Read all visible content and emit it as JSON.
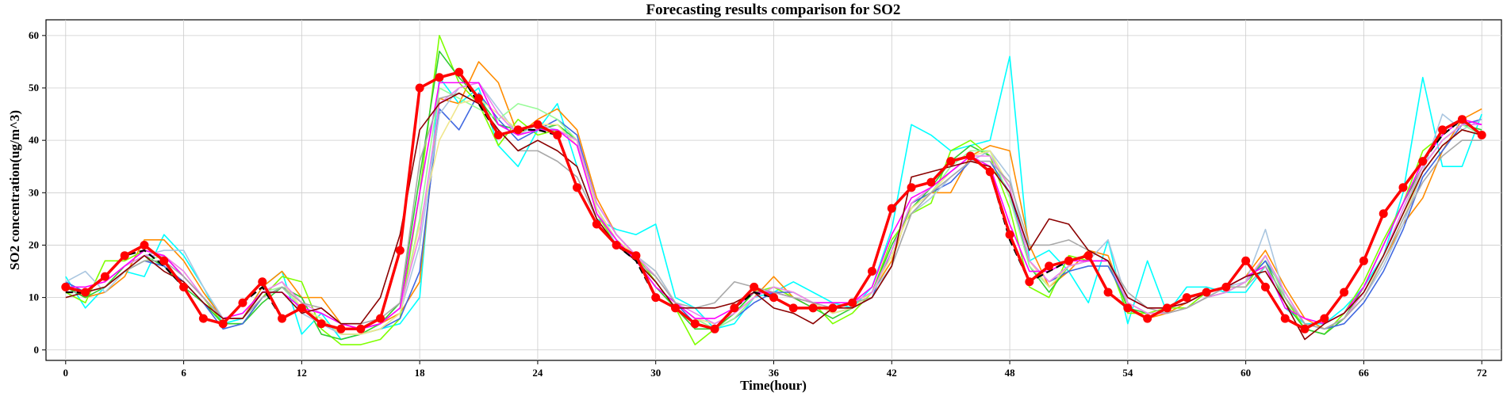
{
  "chart_data": {
    "type": "line",
    "title": "Forecasting results comparison for SO2",
    "xlabel": "Time(hour)",
    "ylabel": "SO2 concentration(ug/m^3)",
    "xlim": [
      -1,
      73
    ],
    "ylim": [
      -2,
      63
    ],
    "xticks": [
      0,
      6,
      12,
      18,
      24,
      30,
      36,
      42,
      48,
      54,
      60,
      66,
      72
    ],
    "yticks": [
      0,
      10,
      20,
      30,
      40,
      50,
      60
    ],
    "grid": true,
    "legend": "none",
    "x": [
      0,
      1,
      2,
      3,
      4,
      5,
      6,
      7,
      8,
      9,
      10,
      11,
      12,
      13,
      14,
      15,
      16,
      17,
      18,
      19,
      20,
      21,
      22,
      23,
      24,
      25,
      26,
      27,
      28,
      29,
      30,
      31,
      32,
      33,
      34,
      35,
      36,
      37,
      38,
      39,
      40,
      41,
      42,
      43,
      44,
      45,
      46,
      47,
      48,
      49,
      50,
      51,
      52,
      53,
      54,
      55,
      56,
      57,
      58,
      59,
      60,
      61,
      62,
      63,
      64,
      65,
      66,
      67,
      68,
      69,
      70,
      71,
      72
    ],
    "series": [
      {
        "color": "#00ffff",
        "style": "solid",
        "values": [
          14,
          8,
          12,
          15,
          14,
          22,
          18,
          12,
          5,
          6,
          12,
          15,
          3,
          7,
          2,
          3,
          4,
          5,
          10,
          52,
          47,
          50,
          39,
          35,
          42,
          47,
          35,
          25,
          23,
          22,
          24,
          10,
          8,
          4,
          5,
          10,
          11,
          13,
          11,
          9,
          8,
          12,
          23,
          43,
          41,
          38,
          39,
          40,
          56,
          17,
          19,
          15,
          9,
          21,
          5,
          17,
          7,
          12,
          12,
          11,
          11,
          16,
          8,
          5,
          5,
          8,
          12,
          18,
          30,
          52,
          35,
          35,
          45
        ]
      },
      {
        "color": "#ff8c00",
        "style": "solid",
        "values": [
          12,
          10,
          11,
          14,
          21,
          21,
          17,
          11,
          6,
          6,
          12,
          15,
          10,
          10,
          5,
          4,
          5,
          7,
          13,
          48,
          47,
          55,
          51,
          41,
          44,
          46,
          42,
          29,
          22,
          18,
          15,
          9,
          6,
          4,
          6,
          10,
          14,
          10,
          8,
          8,
          9,
          11,
          17,
          28,
          30,
          30,
          37,
          39,
          38,
          20,
          12,
          15,
          19,
          18,
          8,
          6,
          7,
          9,
          11,
          12,
          14,
          19,
          12,
          6,
          4,
          6,
          10,
          17,
          24,
          29,
          38,
          44,
          46
        ]
      },
      {
        "color": "#7fff00",
        "style": "solid",
        "values": [
          11,
          9,
          17,
          17,
          19,
          18,
          14,
          10,
          5,
          5,
          10,
          14,
          13,
          4,
          1,
          1,
          2,
          6,
          30,
          60,
          51,
          47,
          39,
          44,
          41,
          42,
          40,
          26,
          20,
          18,
          13,
          8,
          1,
          4,
          7,
          11,
          12,
          10,
          9,
          5,
          7,
          11,
          21,
          26,
          28,
          38,
          40,
          37,
          27,
          12,
          10,
          18,
          17,
          17,
          7,
          7,
          8,
          8,
          11,
          12,
          12,
          18,
          10,
          4,
          3,
          7,
          13,
          21,
          28,
          38,
          41,
          44,
          41
        ]
      },
      {
        "color": "#32cd32",
        "style": "solid",
        "values": [
          12,
          10,
          12,
          16,
          18,
          16,
          12,
          9,
          5,
          5,
          9,
          12,
          10,
          3,
          2,
          3,
          5,
          9,
          33,
          57,
          52,
          48,
          43,
          42,
          42,
          43,
          40,
          27,
          21,
          17,
          12,
          8,
          4,
          4,
          7,
          11,
          11,
          10,
          8,
          6,
          8,
          11,
          20,
          27,
          31,
          36,
          39,
          37,
          31,
          16,
          11,
          16,
          17,
          17,
          8,
          7,
          7,
          8,
          10,
          11,
          13,
          17,
          9,
          4,
          3,
          6,
          12,
          20,
          28,
          35,
          40,
          43,
          42
        ]
      },
      {
        "color": "#4169e1",
        "style": "solid",
        "values": [
          13,
          11,
          12,
          15,
          17,
          16,
          13,
          9,
          4,
          5,
          10,
          12,
          8,
          5,
          3,
          3,
          4,
          6,
          15,
          46,
          42,
          49,
          44,
          40,
          42,
          44,
          41,
          28,
          22,
          18,
          14,
          9,
          5,
          4,
          6,
          9,
          11,
          11,
          9,
          7,
          8,
          10,
          19,
          28,
          30,
          32,
          36,
          36,
          30,
          17,
          13,
          15,
          16,
          16,
          9,
          7,
          7,
          8,
          10,
          11,
          13,
          17,
          11,
          5,
          4,
          5,
          9,
          15,
          23,
          33,
          38,
          43,
          44
        ]
      },
      {
        "color": "#aac6e0",
        "style": "solid",
        "values": [
          13,
          15,
          11,
          15,
          18,
          19,
          19,
          12,
          6,
          6,
          11,
          13,
          7,
          5,
          3,
          3,
          4,
          7,
          20,
          45,
          50,
          51,
          46,
          41,
          43,
          42,
          40,
          27,
          20,
          18,
          15,
          9,
          6,
          5,
          7,
          10,
          12,
          11,
          9,
          7,
          8,
          11,
          16,
          26,
          29,
          33,
          36,
          38,
          33,
          17,
          13,
          16,
          17,
          21,
          9,
          7,
          7,
          8,
          10,
          12,
          13,
          23,
          10,
          5,
          4,
          6,
          10,
          16,
          24,
          34,
          45,
          42,
          44
        ]
      },
      {
        "color": "#98fb98",
        "style": "solid",
        "values": [
          12,
          11,
          12,
          15,
          17,
          18,
          14,
          10,
          6,
          6,
          11,
          12,
          8,
          6,
          3,
          3,
          4,
          7,
          25,
          50,
          48,
          46,
          44,
          47,
          46,
          44,
          40,
          27,
          21,
          18,
          14,
          9,
          6,
          4,
          6,
          10,
          12,
          11,
          9,
          7,
          8,
          11,
          18,
          27,
          30,
          35,
          38,
          38,
          29,
          16,
          12,
          16,
          17,
          17,
          9,
          7,
          7,
          8,
          10,
          11,
          13,
          18,
          10,
          5,
          4,
          6,
          11,
          18,
          26,
          35,
          40,
          43,
          41
        ]
      },
      {
        "color": "#f0e68c",
        "style": "solid",
        "values": [
          12,
          11,
          12,
          15,
          18,
          18,
          15,
          10,
          6,
          6,
          11,
          13,
          8,
          6,
          3,
          3,
          4,
          7,
          24,
          40,
          47,
          48,
          45,
          42,
          43,
          43,
          39,
          27,
          21,
          18,
          14,
          9,
          6,
          5,
          7,
          10,
          12,
          11,
          9,
          7,
          8,
          11,
          18,
          27,
          30,
          34,
          37,
          38,
          31,
          17,
          12,
          16,
          17,
          17,
          9,
          7,
          7,
          8,
          10,
          11,
          13,
          18,
          11,
          5,
          4,
          6,
          11,
          17,
          25,
          34,
          39,
          42,
          41
        ]
      },
      {
        "color": "#ee82ee",
        "style": "solid",
        "values": [
          12,
          12,
          13,
          16,
          18,
          18,
          15,
          10,
          6,
          6,
          11,
          13,
          9,
          7,
          5,
          4,
          5,
          8,
          22,
          47,
          50,
          51,
          45,
          41,
          42,
          42,
          40,
          28,
          22,
          18,
          14,
          9,
          7,
          5,
          7,
          10,
          12,
          11,
          9,
          8,
          9,
          11,
          19,
          28,
          31,
          34,
          37,
          37,
          31,
          17,
          13,
          16,
          17,
          17,
          9,
          7,
          7,
          8,
          10,
          11,
          13,
          18,
          11,
          5,
          4,
          6,
          11,
          18,
          27,
          35,
          40,
          43,
          43
        ]
      },
      {
        "color": "#ff00ff",
        "style": "solid",
        "values": [
          12,
          12,
          13,
          16,
          19,
          18,
          14,
          10,
          6,
          7,
          11,
          11,
          8,
          7,
          5,
          4,
          5,
          8,
          30,
          51,
          51,
          51,
          43,
          41,
          42,
          42,
          39,
          26,
          21,
          17,
          12,
          9,
          6,
          6,
          8,
          11,
          11,
          10,
          9,
          9,
          9,
          12,
          22,
          29,
          31,
          34,
          37,
          35,
          24,
          15,
          15,
          17,
          17,
          17,
          10,
          8,
          8,
          9,
          11,
          12,
          14,
          16,
          8,
          6,
          5,
          7,
          12,
          20,
          28,
          36,
          41,
          44,
          43
        ]
      },
      {
        "color": "#a9a9a9",
        "style": "solid",
        "values": [
          11,
          11,
          12,
          15,
          17,
          17,
          14,
          10,
          6,
          6,
          10,
          12,
          9,
          8,
          5,
          5,
          6,
          9,
          36,
          48,
          49,
          47,
          42,
          38,
          38,
          36,
          33,
          25,
          20,
          17,
          14,
          9,
          8,
          9,
          13,
          12,
          11,
          10,
          9,
          8,
          9,
          10,
          16,
          26,
          30,
          33,
          36,
          36,
          32,
          20,
          20,
          21,
          19,
          17,
          11,
          8,
          7,
          8,
          10,
          12,
          12,
          16,
          10,
          5,
          4,
          6,
          10,
          17,
          25,
          32,
          37,
          40,
          40
        ]
      },
      {
        "color": "#8b0000",
        "style": "solid",
        "values": [
          10,
          11,
          12,
          15,
          18,
          15,
          13,
          9,
          6,
          6,
          11,
          11,
          7,
          8,
          5,
          5,
          10,
          22,
          42,
          47,
          49,
          47,
          42,
          38,
          40,
          38,
          35,
          25,
          20,
          17,
          13,
          8,
          8,
          8,
          9,
          11,
          8,
          7,
          5,
          8,
          8,
          10,
          16,
          33,
          34,
          35,
          36,
          35,
          30,
          19,
          25,
          24,
          19,
          17,
          10,
          8,
          8,
          9,
          11,
          12,
          14,
          15,
          9,
          2,
          5,
          7,
          11,
          18,
          26,
          34,
          39,
          42,
          41
        ]
      },
      {
        "color": "#000000",
        "style": "dashed",
        "values": [
          11,
          11,
          14,
          18,
          19,
          16,
          12,
          6,
          5,
          9,
          12,
          6,
          8,
          5,
          4,
          4,
          6,
          19,
          50,
          52,
          53,
          47,
          41,
          42,
          42,
          41,
          31,
          24,
          20,
          17,
          10,
          8,
          5,
          4,
          8,
          11,
          10,
          8,
          8,
          8,
          9,
          15,
          27,
          31,
          32,
          36,
          37,
          34,
          21,
          13,
          15,
          17,
          18,
          11,
          8,
          6,
          8,
          10,
          11,
          12,
          17,
          12,
          6,
          4,
          6,
          11,
          17,
          26,
          31,
          36,
          41,
          44,
          41
        ]
      },
      {
        "color": "#ff0000",
        "style": "markers",
        "values": [
          12,
          11,
          14,
          18,
          20,
          17,
          12,
          6,
          5,
          9,
          13,
          6,
          8,
          5,
          4,
          4,
          6,
          19,
          50,
          52,
          53,
          48,
          41,
          42,
          43,
          41,
          31,
          24,
          20,
          18,
          10,
          8,
          5,
          4,
          8,
          12,
          10,
          8,
          8,
          8,
          9,
          15,
          27,
          31,
          32,
          36,
          37,
          34,
          22,
          13,
          16,
          17,
          18,
          11,
          8,
          6,
          8,
          10,
          11,
          12,
          17,
          12,
          6,
          4,
          6,
          11,
          17,
          26,
          31,
          36,
          42,
          44,
          41
        ]
      }
    ]
  }
}
